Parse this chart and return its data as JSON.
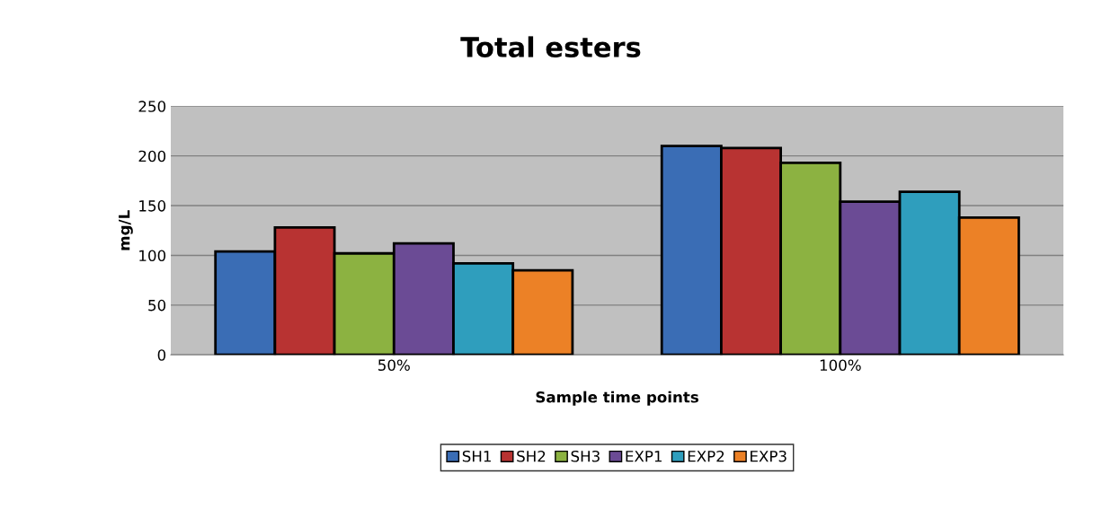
{
  "chart_data": {
    "type": "bar",
    "title": "Total esters",
    "xlabel": "Sample time points",
    "ylabel": "mg/L",
    "categories": [
      "50%",
      "100%"
    ],
    "series": [
      {
        "name": "SH1",
        "color": "#3a6db5",
        "values": [
          104,
          210
        ]
      },
      {
        "name": "SH2",
        "color": "#b83332",
        "values": [
          128,
          208
        ]
      },
      {
        "name": "SH3",
        "color": "#8cb241",
        "values": [
          102,
          193
        ]
      },
      {
        "name": "EXP1",
        "color": "#6b4b95",
        "values": [
          112,
          154
        ]
      },
      {
        "name": "EXP2",
        "color": "#2f9ebd",
        "values": [
          92,
          164
        ]
      },
      {
        "name": "EXP3",
        "color": "#ec8126",
        "values": [
          85,
          138
        ]
      }
    ],
    "ylim": [
      0,
      250
    ],
    "yticks": [
      0,
      50,
      100,
      150,
      200,
      250
    ],
    "grid": "y",
    "legend": "bottom"
  }
}
